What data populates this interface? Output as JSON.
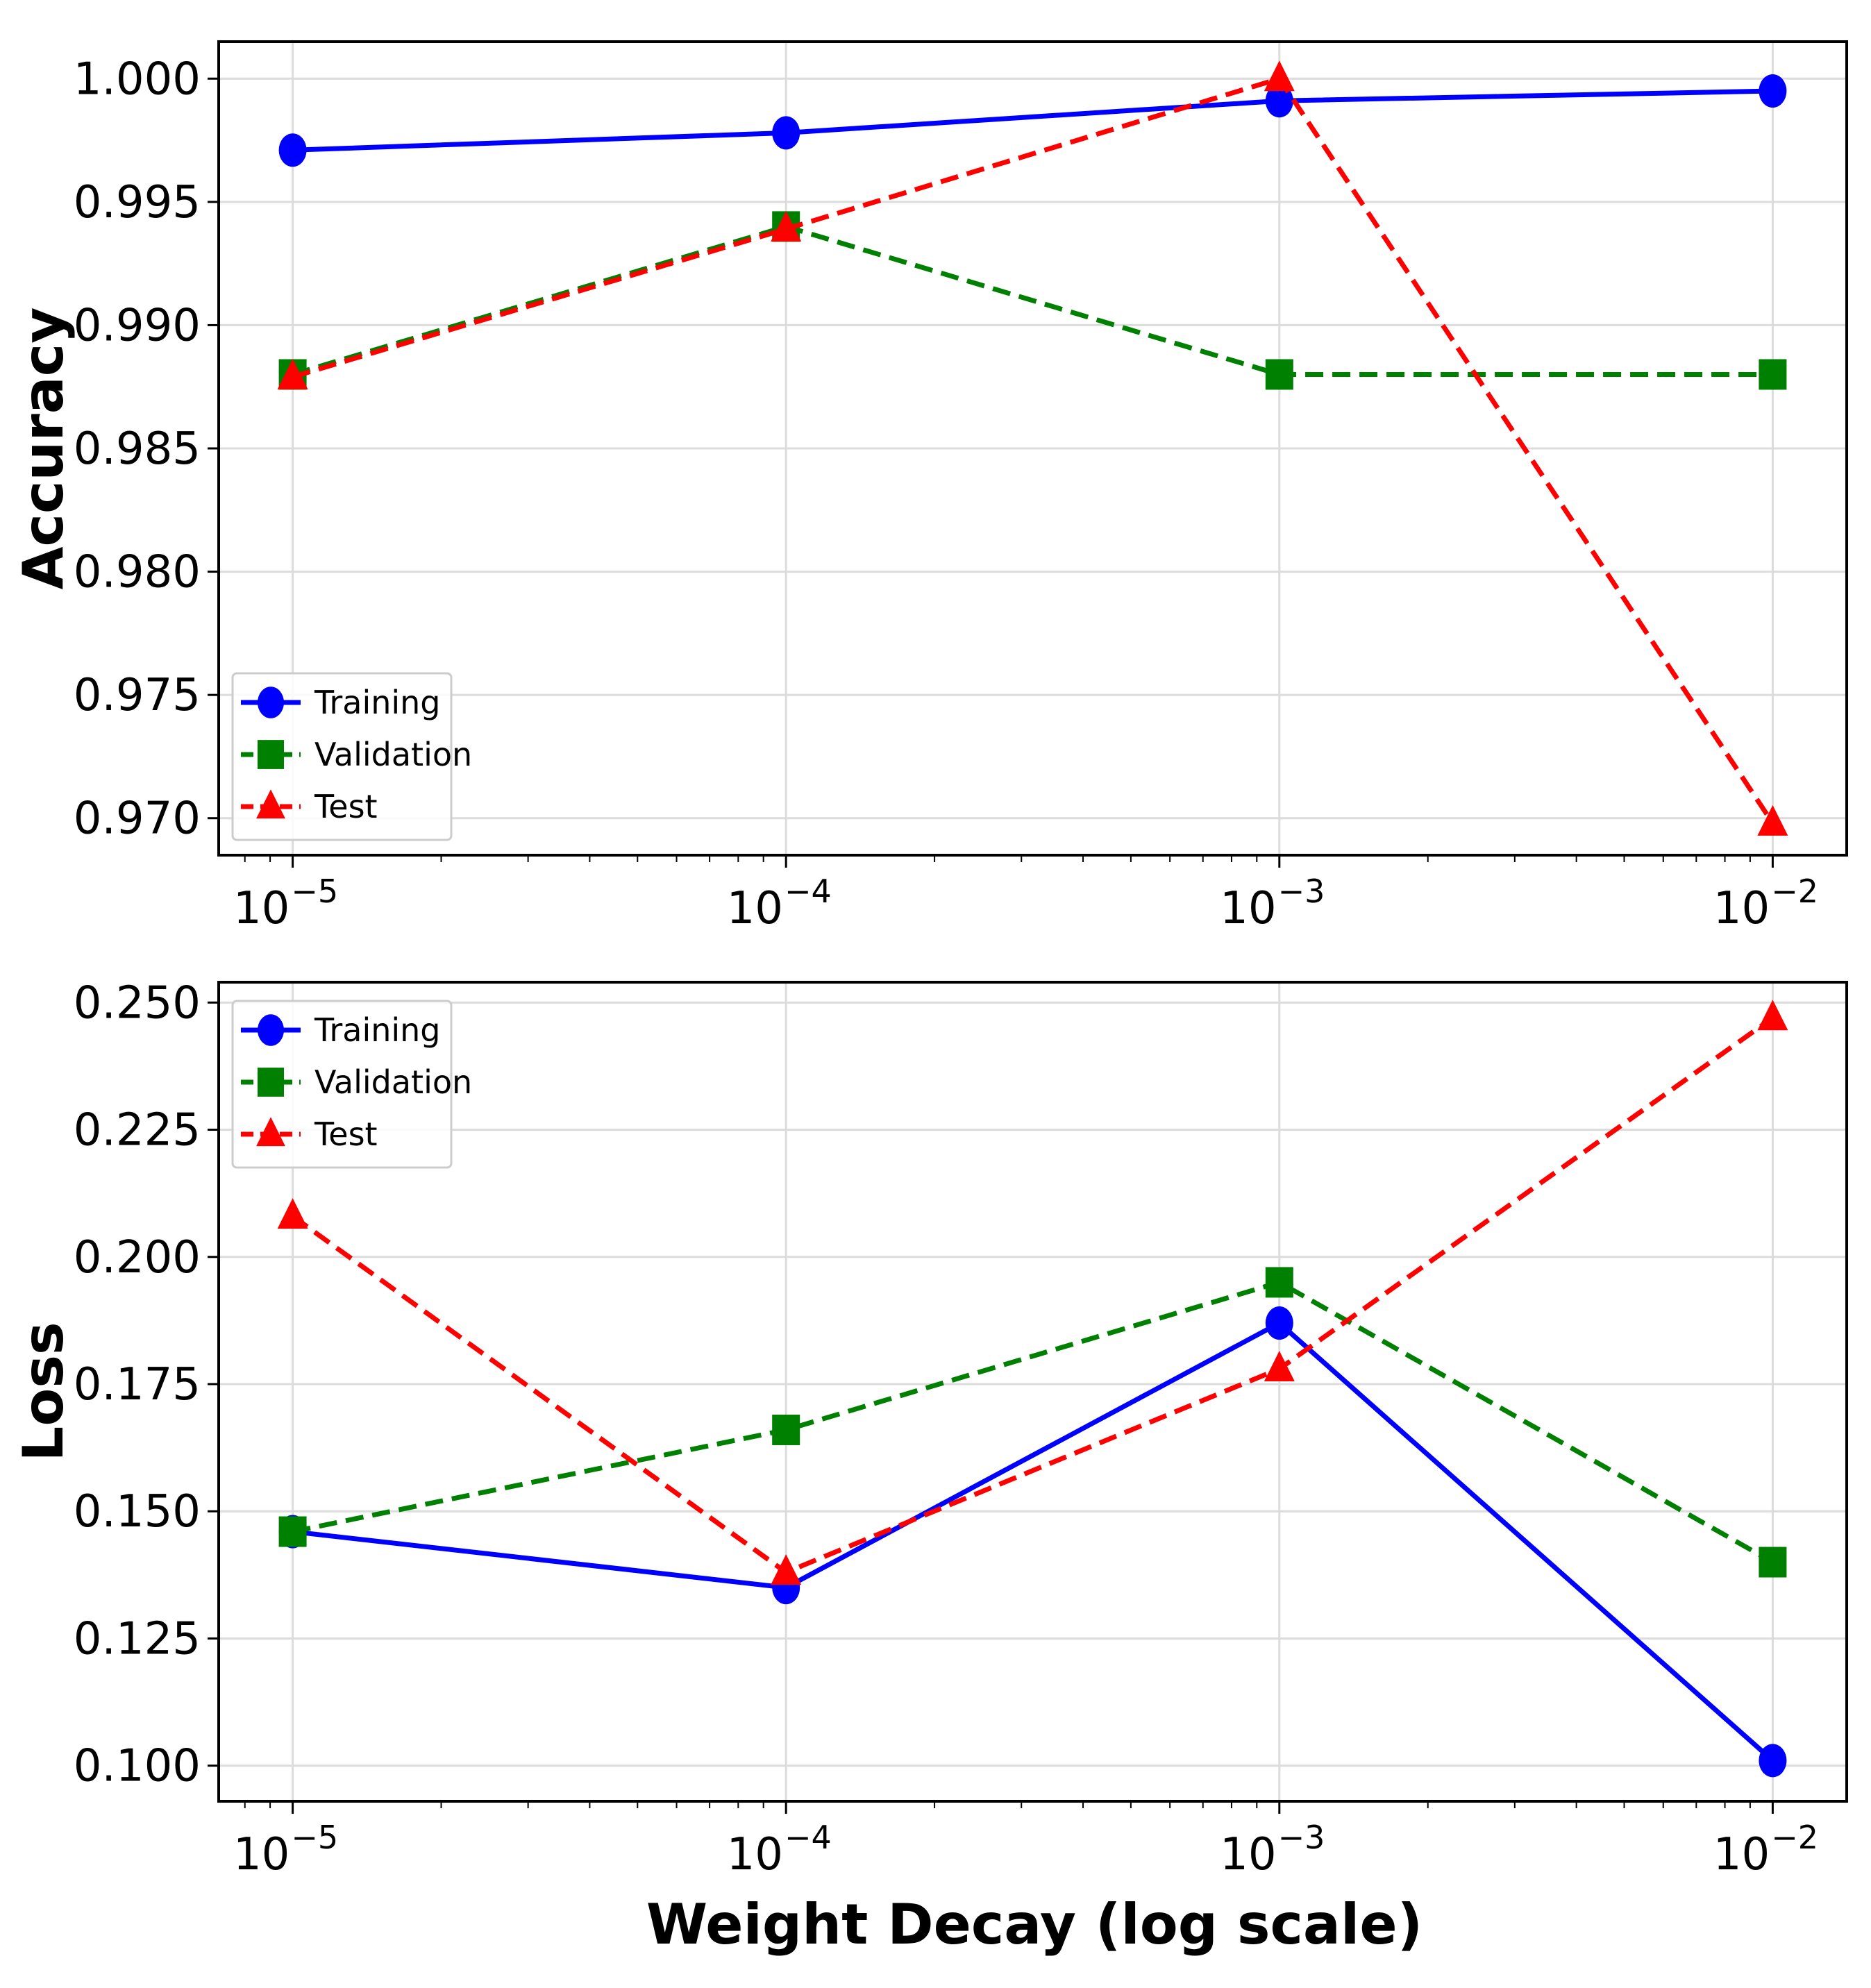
{
  "chart_data": [
    {
      "type": "line",
      "x_scale": "log",
      "x": [
        1e-05,
        0.0001,
        0.001,
        0.01
      ],
      "xtick_labels": [
        {
          "base": "10",
          "exp": "−5"
        },
        {
          "base": "10",
          "exp": "−4"
        },
        {
          "base": "10",
          "exp": "−3"
        },
        {
          "base": "10",
          "exp": "−2"
        }
      ],
      "ylabel": "Accuracy",
      "xlabel": "",
      "ylim": [
        0.9685,
        1.0015
      ],
      "yticks": [
        0.97,
        0.975,
        0.98,
        0.985,
        0.99,
        0.995,
        1.0
      ],
      "ytick_labels": [
        "0.970",
        "0.975",
        "0.980",
        "0.985",
        "0.990",
        "0.995",
        "1.000"
      ],
      "grid": true,
      "legend_position": "lower-left",
      "series": [
        {
          "name": "Training",
          "values": [
            0.9971,
            0.9978,
            0.9991,
            0.9995
          ],
          "color": "#0000ff",
          "dashed": false,
          "marker": "circle"
        },
        {
          "name": "Validation",
          "values": [
            0.988,
            0.994,
            0.988,
            0.988
          ],
          "color": "#008000",
          "dashed": true,
          "marker": "square"
        },
        {
          "name": "Test",
          "values": [
            0.9879,
            0.9939,
            1.0,
            0.9698
          ],
          "color": "#ff0000",
          "dashed": true,
          "marker": "triangle"
        }
      ]
    },
    {
      "type": "line",
      "x_scale": "log",
      "x": [
        1e-05,
        0.0001,
        0.001,
        0.01
      ],
      "xtick_labels": [
        {
          "base": "10",
          "exp": "−5"
        },
        {
          "base": "10",
          "exp": "−4"
        },
        {
          "base": "10",
          "exp": "−3"
        },
        {
          "base": "10",
          "exp": "−2"
        }
      ],
      "ylabel": "Loss",
      "xlabel": "Weight Decay (log scale)",
      "ylim": [
        0.093,
        0.254
      ],
      "yticks": [
        0.1,
        0.125,
        0.15,
        0.175,
        0.2,
        0.225,
        0.25
      ],
      "ytick_labels": [
        "0.100",
        "0.125",
        "0.150",
        "0.175",
        "0.200",
        "0.225",
        "0.250"
      ],
      "grid": true,
      "legend_position": "upper-left",
      "series": [
        {
          "name": "Training",
          "values": [
            0.146,
            0.135,
            0.187,
            0.101
          ],
          "color": "#0000ff",
          "dashed": false,
          "marker": "circle"
        },
        {
          "name": "Validation",
          "values": [
            0.146,
            0.166,
            0.195,
            0.14
          ],
          "color": "#008000",
          "dashed": true,
          "marker": "square"
        },
        {
          "name": "Test",
          "values": [
            0.208,
            0.138,
            0.178,
            0.247
          ],
          "color": "#ff0000",
          "dashed": true,
          "marker": "triangle"
        }
      ]
    }
  ]
}
